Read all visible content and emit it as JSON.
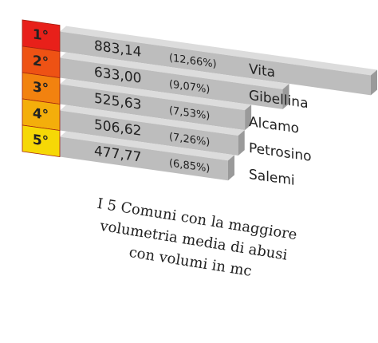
{
  "chart_data": {
    "type": "bar",
    "ranks": [
      "1°",
      "2°",
      "3°",
      "4°",
      "5°"
    ],
    "rank_colors": [
      "#e8201a",
      "#ee5214",
      "#f2820f",
      "#f4ae0b",
      "#f6d806"
    ],
    "categories": [
      "Vita",
      "Gibellina",
      "Alcamo",
      "Petrosino",
      "Salemi"
    ],
    "values": [
      883.14,
      633.0,
      525.63,
      506.62,
      477.77
    ],
    "value_labels": [
      "883,14",
      "633,00",
      "525,63",
      "506,62",
      "477,77"
    ],
    "percent": [
      12.66,
      9.07,
      7.53,
      7.26,
      6.85
    ],
    "percent_labels": [
      "(12,66%)",
      "(9,07%)",
      "(7,53%)",
      "(7,26%)",
      "(6,85%)"
    ],
    "color": "#bdbdbd",
    "caption": [
      "I 5 Comuni con la maggiore",
      "volumetria media di abusi",
      "con volumi in mc"
    ]
  }
}
